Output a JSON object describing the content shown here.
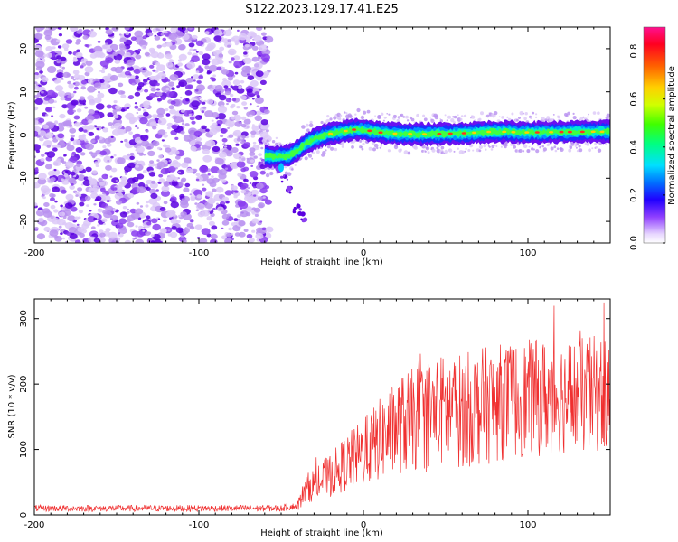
{
  "title": "S122.2023.129.17.41.E25",
  "colors": {
    "snr_line": "#f03030",
    "dot_light": "#dcc8f8",
    "dot_mid": "#b890f0",
    "dot_dark": "#8a3df0",
    "dot_deep": "#5a00e0"
  },
  "chart_data": [
    {
      "type": "heatmap",
      "xlabel": "Height of straight line (km)",
      "ylabel": "Frequency (Hz)",
      "xlim": [
        -200,
        150
      ],
      "ylim": [
        -25,
        25
      ],
      "xticks": [
        -200,
        -100,
        0,
        100
      ],
      "yticks": [
        -20,
        -10,
        0,
        10,
        20
      ],
      "xtick_labels": [
        "-200",
        "-100",
        "0",
        "100"
      ],
      "ytick_labels": [
        "-20",
        "-10",
        "0",
        "10",
        "20"
      ],
      "colorbar": {
        "label": "Normalized spectral amplitude",
        "range": [
          0,
          0.9
        ],
        "ticks": [
          0.0,
          0.2,
          0.4,
          0.6,
          0.8
        ],
        "tick_labels": [
          "0.0",
          "0.2",
          "0.4",
          "0.6",
          "0.8"
        ],
        "colormap": "hsv-rainbow"
      },
      "noise_region": {
        "x_range": [
          -200,
          -57
        ],
        "y_range": [
          -25,
          25
        ]
      },
      "signal_ridge": [
        {
          "x": -60,
          "y": -4.8
        },
        {
          "x": -55,
          "y": -5.0
        },
        {
          "x": -50,
          "y": -5.0
        },
        {
          "x": -45,
          "y": -4.8
        },
        {
          "x": -40,
          "y": -3.5
        },
        {
          "x": -35,
          "y": -2.0
        },
        {
          "x": -30,
          "y": -1.0
        },
        {
          "x": -25,
          "y": -0.2
        },
        {
          "x": -20,
          "y": 0.3
        },
        {
          "x": -15,
          "y": 0.6
        },
        {
          "x": -10,
          "y": 1.0
        },
        {
          "x": -5,
          "y": 1.3
        },
        {
          "x": 0,
          "y": 1.2
        },
        {
          "x": 10,
          "y": 0.6
        },
        {
          "x": 20,
          "y": 0.3
        },
        {
          "x": 40,
          "y": 0.2
        },
        {
          "x": 60,
          "y": 0.4
        },
        {
          "x": 80,
          "y": 0.8
        },
        {
          "x": 100,
          "y": 0.6
        },
        {
          "x": 120,
          "y": 0.7
        },
        {
          "x": 150,
          "y": 0.8
        }
      ],
      "branch": [
        {
          "x": -52,
          "y": -7.5
        },
        {
          "x": -48,
          "y": -10.0
        },
        {
          "x": -45,
          "y": -13.0
        },
        {
          "x": -40,
          "y": -17.0
        },
        {
          "x": -37,
          "y": -19.0
        }
      ]
    },
    {
      "type": "line",
      "xlabel": "Height of straight line (km)",
      "ylabel": "SNR (10 * v/v)",
      "xlim": [
        -200,
        150
      ],
      "ylim": [
        0,
        330
      ],
      "xticks": [
        -200,
        -100,
        0,
        100
      ],
      "yticks": [
        0,
        100,
        200,
        300
      ],
      "xtick_labels": [
        "-200",
        "-100",
        "0",
        "100"
      ],
      "ytick_labels": [
        "0",
        "100",
        "200",
        "300"
      ],
      "envelope": [
        {
          "x": -200,
          "y": 10
        },
        {
          "x": -150,
          "y": 10
        },
        {
          "x": -100,
          "y": 10
        },
        {
          "x": -50,
          "y": 10
        },
        {
          "x": -40,
          "y": 14
        },
        {
          "x": -35,
          "y": 40
        },
        {
          "x": -20,
          "y": 60
        },
        {
          "x": -10,
          "y": 80
        },
        {
          "x": 0,
          "y": 95
        },
        {
          "x": 10,
          "y": 115
        },
        {
          "x": 20,
          "y": 135
        },
        {
          "x": 30,
          "y": 145
        },
        {
          "x": 40,
          "y": 155
        },
        {
          "x": 50,
          "y": 160
        },
        {
          "x": 60,
          "y": 160
        },
        {
          "x": 70,
          "y": 165
        },
        {
          "x": 80,
          "y": 170
        },
        {
          "x": 90,
          "y": 175
        },
        {
          "x": 100,
          "y": 178
        },
        {
          "x": 110,
          "y": 180
        },
        {
          "x": 120,
          "y": 182
        },
        {
          "x": 130,
          "y": 180
        },
        {
          "x": 140,
          "y": 185
        },
        {
          "x": 150,
          "y": 185
        }
      ]
    }
  ]
}
